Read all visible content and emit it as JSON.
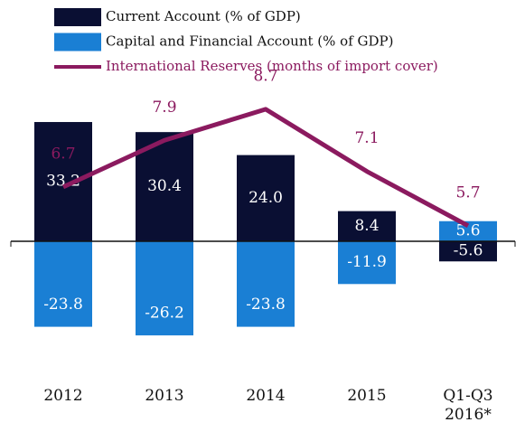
{
  "chart_data": {
    "type": "bar",
    "categories": [
      "2012",
      "2013",
      "2014",
      "2015",
      "Q1-Q3\n2016*"
    ],
    "series": [
      {
        "name": "Current Account (% of GDP)",
        "type": "bar",
        "color": "#0a0f33",
        "values": [
          33.2,
          30.4,
          24.0,
          8.4,
          -5.6
        ],
        "value_labels": [
          "33.2",
          "30.4",
          "24.0",
          "8.4",
          "-5.6"
        ]
      },
      {
        "name": "Capital and Financial Account (% of GDP)",
        "type": "bar",
        "color": "#1a7fd4",
        "values": [
          -23.8,
          -26.2,
          -23.8,
          -11.9,
          5.6
        ]
      },
      {
        "name": "International Reserves (months of import cover)",
        "type": "line",
        "axis": "y2",
        "color": "#8b1a5f",
        "values": [
          6.7,
          7.9,
          8.7,
          7.1,
          5.7
        ]
      }
    ],
    "ylim": [
      -40,
      40
    ],
    "y2lim": [
      1.6,
      9.0
    ]
  }
}
